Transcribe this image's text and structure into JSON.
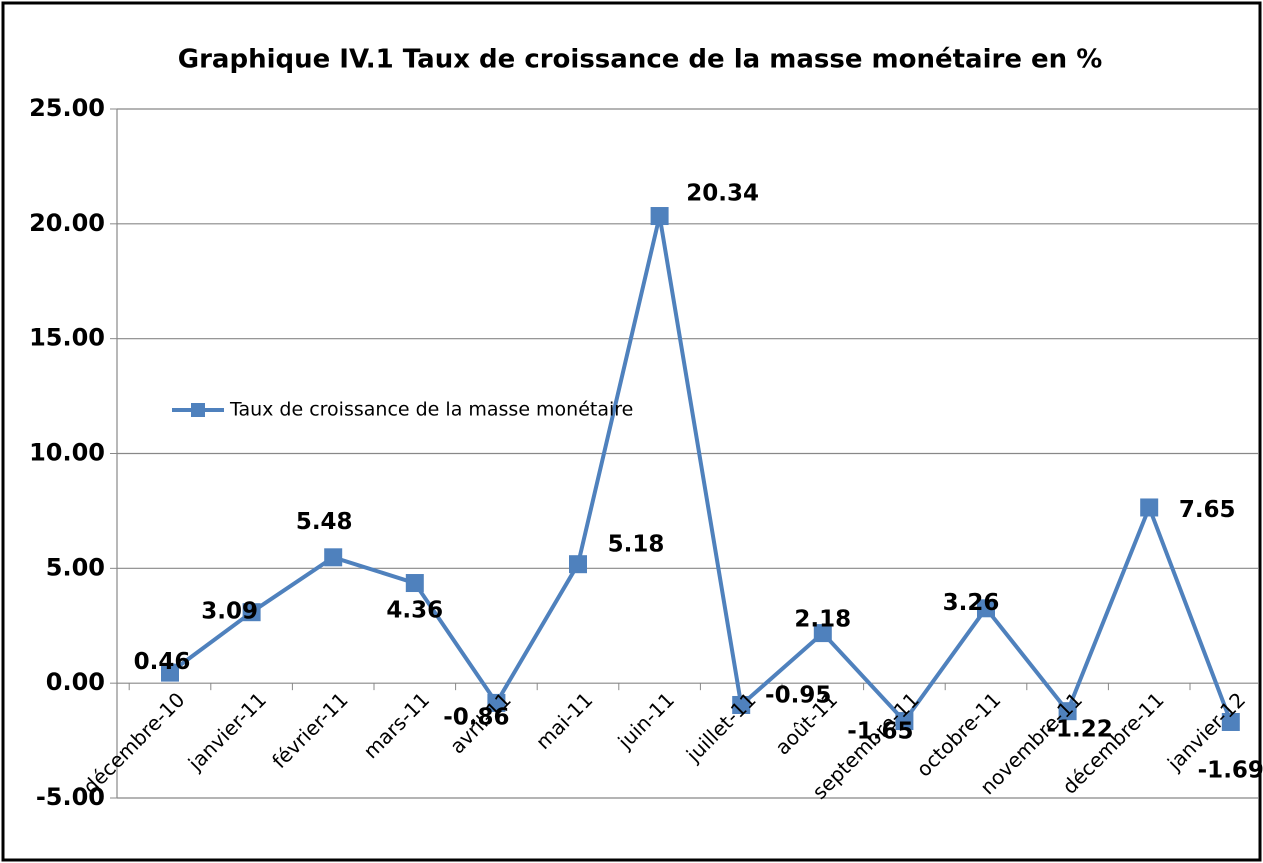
{
  "chart_data": {
    "type": "line",
    "title": "Graphique IV.1 Taux de croissance de la masse monétaire en %",
    "categories": [
      "décembre-10",
      "janvier-11",
      "février-11",
      "mars-11",
      "avril-11",
      "mai-11",
      "juin-11",
      "juillet-11",
      "août-11",
      "septembre-11",
      "octobre-11",
      "novembre-11",
      "décembre-11",
      "janvier-12"
    ],
    "series": [
      {
        "name": "Taux de croissance de la masse monétaire",
        "color": "#4f81bd",
        "values": [
          0.46,
          3.09,
          5.48,
          4.36,
          -0.86,
          5.18,
          20.34,
          -0.95,
          2.18,
          -1.65,
          3.26,
          -1.22,
          7.65,
          -1.69
        ]
      }
    ],
    "ylim": [
      -5,
      25
    ],
    "yticks": [
      {
        "value": -5,
        "label": "-5.00"
      },
      {
        "value": 0,
        "label": "0.00"
      },
      {
        "value": 5,
        "label": "5.00"
      },
      {
        "value": 10,
        "label": "10.00"
      },
      {
        "value": 15,
        "label": "15.00"
      },
      {
        "value": 20,
        "label": "20.00"
      },
      {
        "value": 25,
        "label": "25.00"
      }
    ],
    "grid": true,
    "legend": "left"
  }
}
